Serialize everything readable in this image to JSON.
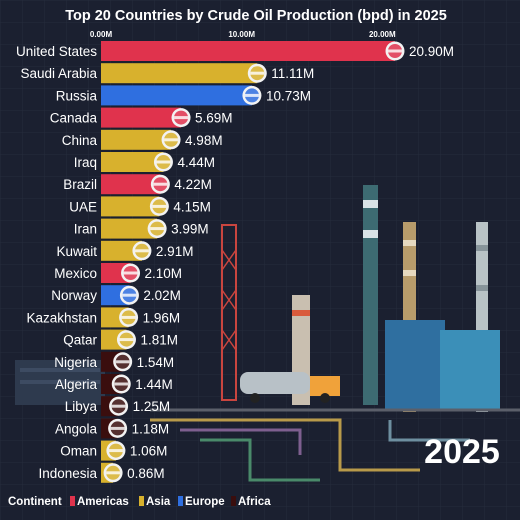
{
  "colors": {
    "Americas": "#e0334d",
    "Asia": "#d8b12d",
    "Europe": "#2f6fe0",
    "Africa": "#3a0e0e"
  },
  "legend": {
    "label": "Continent",
    "items": [
      "Americas",
      "Asia",
      "Europe",
      "Africa"
    ]
  },
  "year_label": "2025",
  "chart_data": {
    "type": "bar",
    "orientation": "horizontal",
    "title": "Top 20 Countries by Crude Oil Production (bpd) in 2025",
    "xlim": [
      0,
      20.9
    ],
    "ticks": [
      {
        "value": 0,
        "label": "0.00M"
      },
      {
        "value": 10,
        "label": "10.00M"
      },
      {
        "value": 20,
        "label": "20.00M"
      }
    ],
    "categories": [
      "United States",
      "Saudi Arabia",
      "Russia",
      "Canada",
      "China",
      "Iraq",
      "Brazil",
      "UAE",
      "Iran",
      "Kuwait",
      "Mexico",
      "Norway",
      "Kazakhstan",
      "Qatar",
      "Nigeria",
      "Algeria",
      "Libya",
      "Angola",
      "Oman",
      "Indonesia"
    ],
    "values": [
      20.9,
      11.11,
      10.73,
      5.69,
      4.98,
      4.44,
      4.22,
      4.15,
      3.99,
      2.91,
      2.1,
      2.02,
      1.96,
      1.81,
      1.54,
      1.44,
      1.25,
      1.18,
      1.06,
      0.86
    ],
    "value_labels": [
      "20.90M",
      "11.11M",
      "10.73M",
      "5.69M",
      "4.98M",
      "4.44M",
      "4.22M",
      "4.15M",
      "3.99M",
      "2.91M",
      "2.10M",
      "2.02M",
      "1.96M",
      "1.81M",
      "1.54M",
      "1.44M",
      "1.25M",
      "1.18M",
      "1.06M",
      "0.86M"
    ],
    "continents": [
      "Americas",
      "Asia",
      "Europe",
      "Americas",
      "Asia",
      "Asia",
      "Americas",
      "Asia",
      "Asia",
      "Asia",
      "Americas",
      "Europe",
      "Asia",
      "Asia",
      "Africa",
      "Africa",
      "Africa",
      "Africa",
      "Asia",
      "Asia"
    ],
    "flags": [
      "us-flag-icon",
      "saudi-flag-icon",
      "russia-flag-icon",
      "canada-flag-icon",
      "china-flag-icon",
      "iraq-flag-icon",
      "brazil-flag-icon",
      "uae-flag-icon",
      "iran-flag-icon",
      "kuwait-flag-icon",
      "mexico-flag-icon",
      "norway-flag-icon",
      "kazakhstan-flag-icon",
      "qatar-flag-icon",
      "nigeria-flag-icon",
      "algeria-flag-icon",
      "libya-flag-icon",
      "angola-flag-icon",
      "oman-flag-icon",
      "indonesia-flag-icon"
    ]
  }
}
